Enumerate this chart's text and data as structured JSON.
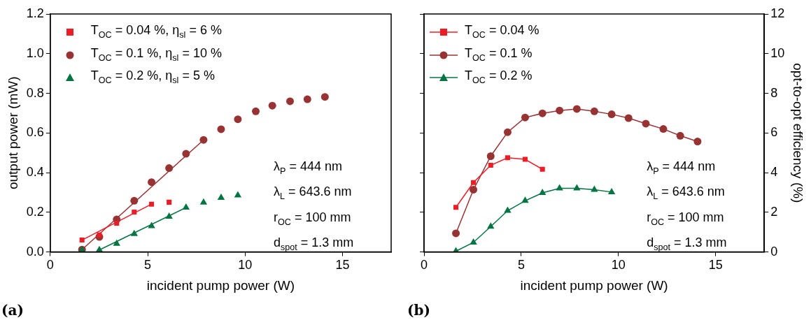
{
  "chart_data": [
    {
      "type": "scatter",
      "xlabel": "incident pump power (W)",
      "ylabel": "output power (mW)",
      "xlim": [
        0,
        17.5
      ],
      "xticks": [
        0,
        5,
        10,
        15
      ],
      "ylim": [
        0,
        1.2
      ],
      "yticks": [
        {
          "value": 0,
          "label": "0.0"
        },
        {
          "value": 0.2,
          "label": "0.2"
        },
        {
          "value": 0.4,
          "label": "0.4"
        },
        {
          "value": 0.6,
          "label": "0.6"
        },
        {
          "value": 0.8,
          "label": "0.8"
        },
        {
          "value": 1,
          "label": "1.0"
        },
        {
          "value": 1.2,
          "label": "1.2"
        }
      ],
      "legend": "top left",
      "series": [
        {
          "name": "T$_{OC}$ = 0.04 %, η$_{sl}$ = 6 %",
          "color": "#ee1c25",
          "marker": "square",
          "x": [
            1.63,
            2.52,
            3.41,
            4.31,
            5.2,
            6.1
          ],
          "values": [
            0.06,
            0.086,
            0.145,
            0.201,
            0.241,
            0.251
          ]
        },
        {
          "name": "T$_{OC}$ = 0.1 %, η$_{sl}$ = 10 %",
          "color": "#983334",
          "marker": "circle",
          "x": [
            1.63,
            2.52,
            3.41,
            4.31,
            5.2,
            6.1,
            6.97,
            7.87,
            8.77,
            9.63,
            10.55,
            11.4,
            12.31,
            13.2,
            14.1
          ],
          "values": [
            0.012,
            0.076,
            0.164,
            0.258,
            0.352,
            0.423,
            0.495,
            0.565,
            0.619,
            0.669,
            0.709,
            0.738,
            0.76,
            0.77,
            0.782
          ]
        },
        {
          "name": "T$_{OC}$ = 0.2 %, η$_{sl}$ = 5 %",
          "color": "#047443",
          "marker": "triangle",
          "x": [
            1.63,
            2.52,
            3.41,
            4.31,
            5.2,
            6.1,
            6.97,
            7.87,
            8.77,
            9.63
          ],
          "values": [
            0.01,
            0.01,
            0.042,
            0.091,
            0.131,
            0.178,
            0.224,
            0.25,
            0.273,
            0.286
          ]
        },
        {
          "type": "line",
          "marker": "none",
          "color": "#ee1c25",
          "x": [
            1.63,
            5.2
          ],
          "values": [
            0.06,
            0.241
          ]
        },
        {
          "type": "line",
          "marker": "none",
          "color": "#983334",
          "x": [
            1.63,
            7.87
          ],
          "values": [
            0.012,
            0.565
          ]
        },
        {
          "type": "line",
          "marker": "none",
          "color": "#047443",
          "x": [
            2.52,
            6.97
          ],
          "values": [
            0.01,
            0.224
          ]
        }
      ],
      "annotations": [
        "λ$_{P}$ = 444 nm",
        "λ$_{L}$  = 643.6 nm",
        "r$_{OC}$ = 100 mm",
        "d$_{spot}$ = 1.3 mm",
        "(a)"
      ]
    },
    {
      "type": "line",
      "xlabel": "incident pump power (W)",
      "y2label": "opt-to-opt efficiency (%)",
      "xlim": [
        0,
        17.5
      ],
      "xticks": [
        0,
        5,
        10,
        15
      ],
      "y2lim": [
        0,
        12
      ],
      "y2ticks": [
        0,
        2,
        4,
        6,
        8,
        10,
        12
      ],
      "legend": "top left",
      "series": [
        {
          "name": "T$_{OC}$ = 0.04 %",
          "color": "#ee1c25",
          "marker": "square",
          "axis": "y2",
          "x": [
            1.64,
            2.54,
            3.43,
            4.3,
            5.2,
            6.09
          ],
          "values": [
            2.25,
            3.5,
            4.37,
            4.75,
            4.67,
            4.17
          ]
        },
        {
          "name": "T$_{OC}$ = 0.1 %",
          "color": "#983334",
          "marker": "circle",
          "axis": "y2",
          "x": [
            1.64,
            2.54,
            3.43,
            4.3,
            5.2,
            6.09,
            6.97,
            7.86,
            8.76,
            9.65,
            10.52,
            11.41,
            12.31,
            13.18,
            14.07
          ],
          "values": [
            0.94,
            3.14,
            4.83,
            6.04,
            6.78,
            6.99,
            7.13,
            7.21,
            7.09,
            6.94,
            6.75,
            6.47,
            6.2,
            5.86,
            5.57
          ]
        },
        {
          "name": "T$_{OC}$ = 0.2 %",
          "color": "#047443",
          "marker": "triangle",
          "axis": "y2",
          "x": [
            1.64,
            2.54,
            3.43,
            4.3,
            5.2,
            6.09,
            6.97,
            7.86,
            8.76,
            9.65
          ],
          "values": [
            0.04,
            0.48,
            1.28,
            2.08,
            2.58,
            2.98,
            3.21,
            3.21,
            3.14,
            3.02
          ]
        }
      ],
      "annotations": [
        "λ$_{P}$ = 444 nm",
        "λ$_{L}$  = 643.6 nm",
        "r$_{OC}$ = 100 mm",
        "d$_{spot}$ = 1.3 mm",
        "(b)"
      ]
    }
  ]
}
